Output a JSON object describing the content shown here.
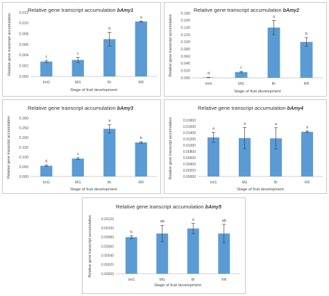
{
  "chart_data": [
    {
      "type": "bar",
      "title": "Relative gene transcript accumulation",
      "gene": "bAmy1",
      "xlabel": "Stage of fruit development",
      "ylabel": "Relative gene transcript accumulation",
      "categories": [
        "ImG",
        "MG",
        "Br",
        "RR"
      ],
      "values": [
        0.0028,
        0.0031,
        0.007,
        0.0103
      ],
      "errors": [
        0.0002,
        0.0005,
        0.0013,
        0.0001
      ],
      "significance": [
        "c",
        "c",
        "b",
        "a"
      ],
      "ylim": [
        0,
        0.012
      ],
      "yticks": [
        "0.000",
        "0.002",
        "0.004",
        "0.006",
        "0.008",
        "0.010",
        "0.012"
      ],
      "bar_color": "#5B9BD5"
    },
    {
      "type": "bar",
      "title": "Relative gene transcript accumulation",
      "gene": "bAmy2",
      "xlabel": "Stage of fruit development",
      "ylabel": "Relative gene transcript accumulation",
      "categories": [
        "ImG",
        "MG",
        "Br",
        "RR"
      ],
      "values": [
        0.001,
        0.016,
        0.14,
        0.1
      ],
      "errors": [
        0.0005,
        0.002,
        0.02,
        0.012
      ],
      "significance": [
        "d",
        "c",
        "a",
        "b"
      ],
      "ylim": [
        0,
        0.18
      ],
      "yticks": [
        "0.000",
        "0.020",
        "0.040",
        "0.060",
        "0.080",
        "0.100",
        "0.120",
        "0.140",
        "0.160",
        "0.180"
      ],
      "bar_color": "#5B9BD5"
    },
    {
      "type": "bar",
      "title": "Relative gene transcript accumulation",
      "gene": "bAmy3",
      "xlabel": "Stage of fruit development",
      "ylabel": "Relative gene transcript accumulation",
      "categories": [
        "ImG",
        "MG",
        "Br",
        "RR"
      ],
      "values": [
        0.055,
        0.092,
        0.245,
        0.175
      ],
      "errors": [
        0.004,
        0.005,
        0.022,
        0.004
      ],
      "significance": [
        "d",
        "c",
        "a",
        "b"
      ],
      "ylim": [
        0,
        0.3
      ],
      "yticks": [
        "0.000",
        "0.050",
        "0.100",
        "0.150",
        "0.200",
        "0.250",
        "0.300"
      ],
      "bar_color": "#5B9BD5"
    },
    {
      "type": "bar",
      "title": "Relative gene transcript accumulation",
      "gene": "bAmy4",
      "xlabel": "Stage of fruit development",
      "ylabel": "Relative gene transcript accumulation",
      "categories": [
        "ImG",
        "MG",
        "Br",
        "RR"
      ],
      "values": [
        0.0125,
        0.0123,
        0.0122,
        0.0143
      ],
      "errors": [
        0.0016,
        0.0034,
        0.0034,
        0.0003
      ],
      "significance": [
        "a",
        "a",
        "a",
        "a"
      ],
      "ylim": [
        0,
        0.018
      ],
      "yticks": [
        "0.00000",
        "0.00200",
        "0.00400",
        "0.00600",
        "0.00800",
        "0.01000",
        "0.01200",
        "0.01400",
        "0.01600",
        "0.01800"
      ],
      "bar_color": "#5B9BD5"
    },
    {
      "type": "bar",
      "title": "Relative gene transcript accumulation",
      "gene": "bAmy5",
      "xlabel": "Stage of fruit development",
      "ylabel": "Relative gene transcript accumulation",
      "categories": [
        "ImG",
        "MG",
        "Br",
        "RR"
      ],
      "values": [
        0.0008,
        0.00088,
        0.00099,
        0.00088
      ],
      "errors": [
        3e-05,
        0.00018,
        0.00011,
        0.0002
      ],
      "significance": [
        "b",
        "ab",
        "a",
        "ab"
      ],
      "ylim": [
        0,
        0.0012
      ],
      "yticks": [
        "0.00000",
        "0.00020",
        "0.00040",
        "0.00060",
        "0.00080",
        "0.00100",
        "0.00120"
      ],
      "bar_color": "#5B9BD5"
    }
  ]
}
